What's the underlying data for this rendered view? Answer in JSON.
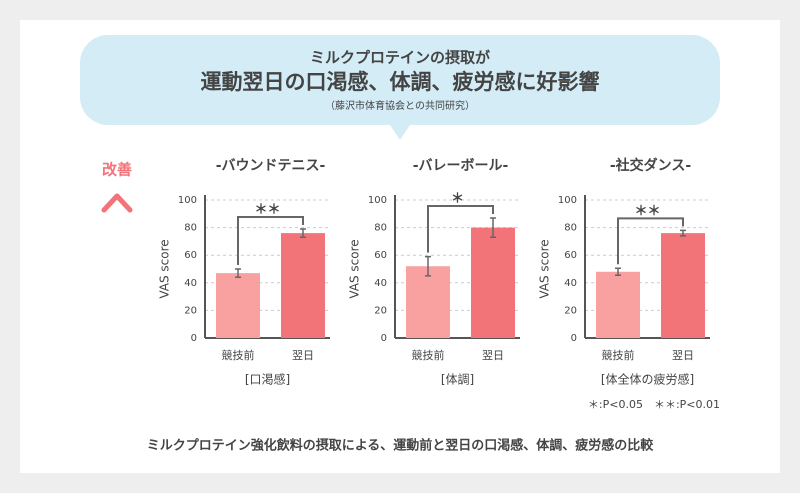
{
  "header": {
    "line1": "ミルクプロテインの摂取が",
    "line2": "運動翌日の口渇感、体調、疲労感に好影響",
    "line3": "（藤沢市体育協会との共同研究）"
  },
  "improve_label": "改善",
  "chart_data": [
    {
      "type": "bar",
      "title": "-バウンドテニス-",
      "subtitle": "[口渇感]",
      "y_label": "VAS score",
      "categories": [
        "競技前",
        "翌日"
      ],
      "values": [
        47,
        76
      ],
      "errors": [
        3,
        3
      ],
      "colors": [
        "#f9a0a0",
        "#f27378"
      ],
      "significance": "＊＊",
      "ylim": [
        0,
        100
      ],
      "yticks": [
        0,
        20,
        40,
        60,
        80,
        100
      ],
      "grid": true
    },
    {
      "type": "bar",
      "title": "-バレーボール-",
      "subtitle": "[体調]",
      "y_label": "VAS score",
      "categories": [
        "競技前",
        "翌日"
      ],
      "values": [
        52,
        80
      ],
      "errors": [
        7,
        7
      ],
      "colors": [
        "#f9a0a0",
        "#f27378"
      ],
      "significance": "＊",
      "ylim": [
        0,
        100
      ],
      "yticks": [
        0,
        20,
        40,
        60,
        80,
        100
      ],
      "grid": true
    },
    {
      "type": "bar",
      "title": "-社交ダンス-",
      "subtitle": "[体全体の疲労感]",
      "y_label": "VAS score",
      "categories": [
        "競技前",
        "翌日"
      ],
      "values": [
        48,
        76
      ],
      "errors": [
        2.5,
        2
      ],
      "colors": [
        "#f9a0a0",
        "#f27378"
      ],
      "significance": "＊＊",
      "ylim": [
        0,
        100
      ],
      "yticks": [
        0,
        20,
        40,
        60,
        80,
        100
      ],
      "grid": true
    }
  ],
  "note": "＊:P<0.05　＊＊:P<0.01",
  "caption": "ミルクプロテイン強化飲料の摂取による、運動前と翌日の口渇感、体調、疲労感の比較"
}
